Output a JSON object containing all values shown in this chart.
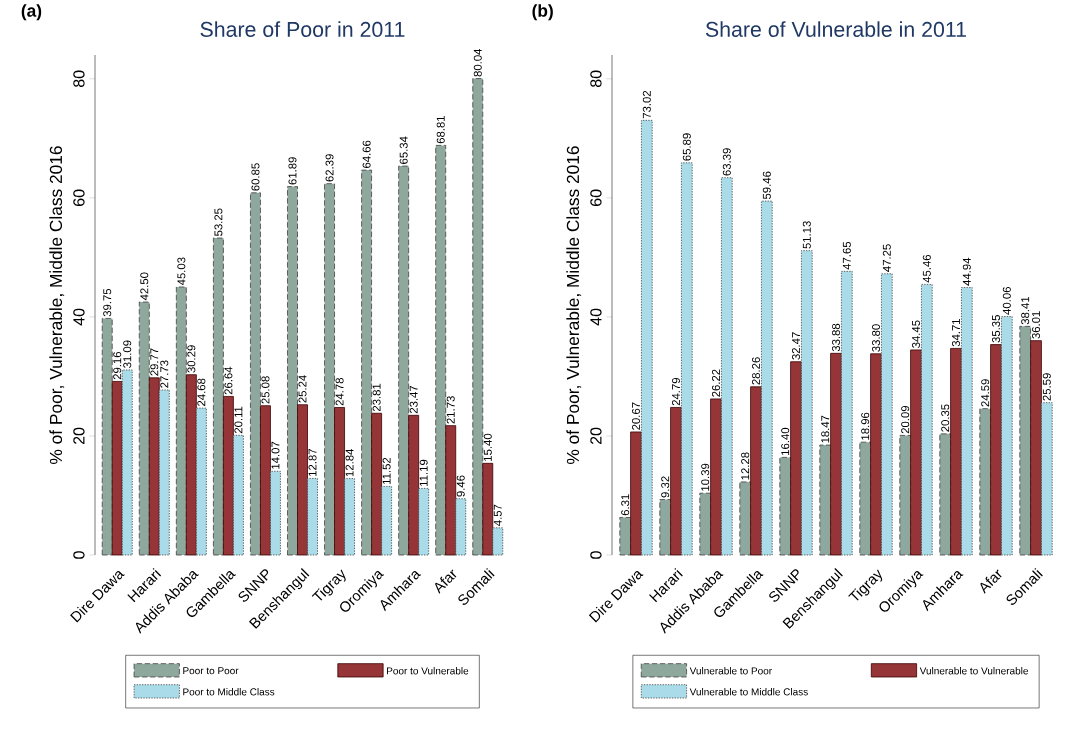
{
  "chart_data": [
    {
      "type": "bar",
      "title": "Share of Poor in 2011",
      "ylabel": "% of Poor, Vulnerable, Middle Class 2016",
      "annotations": [
        "(a)"
      ],
      "categories": [
        "Dire Dawa",
        "Harari",
        "Addis Ababa",
        "Gambella",
        "SNNP",
        "Benshangul",
        "Tigray",
        "Oromiya",
        "Amhara",
        "Afar",
        "Somali"
      ],
      "ylim": [
        0,
        84
      ],
      "yticks": [
        0,
        20,
        40,
        60,
        80
      ],
      "grid": false,
      "legend": "bottom",
      "series": [
        {
          "name": "Poor to Poor",
          "color": "#8fa89e",
          "line_style": "dashed",
          "values": [
            39.75,
            42.5,
            45.03,
            53.25,
            60.85,
            61.89,
            62.39,
            64.66,
            65.34,
            68.81,
            80.04
          ],
          "value_labels": [
            "39.75",
            "42.50",
            "45.03",
            "53.25",
            "60.85",
            "61.89",
            "62.39",
            "64.66",
            "65.34",
            "68.81",
            "80.04"
          ]
        },
        {
          "name": "Poor to Vulnerable",
          "color": "#953538",
          "line_style": "solid",
          "values": [
            29.16,
            29.77,
            30.29,
            26.64,
            25.08,
            25.24,
            24.78,
            23.81,
            23.47,
            21.73,
            15.4
          ],
          "value_labels": [
            "29.16",
            "29.77",
            "30.29",
            "26.64",
            "25.08",
            "25.24",
            "24.78",
            "23.81",
            "23.47",
            "21.73",
            "15.40"
          ]
        },
        {
          "name": "Poor to Middle Class",
          "color": "#a9dbe8",
          "line_style": "dotted",
          "values": [
            31.09,
            27.73,
            24.68,
            20.11,
            14.07,
            12.87,
            12.84,
            11.52,
            11.19,
            9.46,
            4.57
          ],
          "value_labels": [
            "31.09",
            "27.73",
            "24.68",
            "20.11",
            "14.07",
            "12.87",
            "12.84",
            "11.52",
            "11.19",
            "9.46",
            "4.57"
          ]
        }
      ]
    },
    {
      "type": "bar",
      "title": "Share of Vulnerable in 2011",
      "ylabel": "% of Poor, Vulnerable, Middle Class 2016",
      "annotations": [
        "(b)"
      ],
      "categories": [
        "Dire Dawa",
        "Harari",
        "Addis Ababa",
        "Gambella",
        "SNNP",
        "Benshangul",
        "Tigray",
        "Oromiya",
        "Amhara",
        "Afar",
        "Somali"
      ],
      "ylim": [
        0,
        84
      ],
      "yticks": [
        0,
        20,
        40,
        60,
        80
      ],
      "grid": false,
      "legend": "bottom",
      "series": [
        {
          "name": "Vulnerable to Poor",
          "color": "#8fa89e",
          "line_style": "dashed",
          "values": [
            6.31,
            9.32,
            10.39,
            12.28,
            16.4,
            18.47,
            18.96,
            20.09,
            20.35,
            24.59,
            38.41
          ],
          "value_labels": [
            "6.31",
            "9.32",
            "10.39",
            "12.28",
            "16.40",
            "18.47",
            "18.96",
            "20.09",
            "20.35",
            "24.59",
            "38.41"
          ]
        },
        {
          "name": "Vulnerable to Vulnerable",
          "color": "#953538",
          "line_style": "solid",
          "values": [
            20.67,
            24.79,
            26.22,
            28.26,
            32.47,
            33.88,
            33.8,
            34.45,
            34.71,
            35.35,
            36.01
          ],
          "value_labels": [
            "20.67",
            "24.79",
            "26.22",
            "28.26",
            "32.47",
            "33.88",
            "33.80",
            "34.45",
            "34.71",
            "35.35",
            "36.01"
          ]
        },
        {
          "name": "Vulnerable to Middle Class",
          "color": "#a9dbe8",
          "line_style": "dotted",
          "values": [
            73.02,
            65.89,
            63.39,
            59.46,
            51.13,
            47.65,
            47.25,
            45.46,
            44.94,
            40.06,
            25.59
          ],
          "value_labels": [
            "73.02",
            "65.89",
            "63.39",
            "59.46",
            "51.13",
            "47.65",
            "47.25",
            "45.46",
            "44.94",
            "40.06",
            "25.59"
          ]
        }
      ]
    }
  ]
}
